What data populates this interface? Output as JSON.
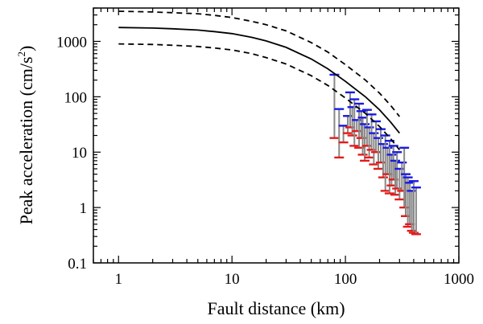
{
  "chart_data": {
    "type": "scatter",
    "title": "",
    "xlabel": "Fault distance (km)",
    "ylabel_main": "Peak acceleration (cm/s",
    "ylabel_sup": "2",
    "ylabel_close": ")",
    "xscale": "log",
    "yscale": "log",
    "xlim": [
      0.6,
      1000
    ],
    "ylim": [
      0.1,
      4000
    ],
    "grid": false,
    "x_ticks": [
      1,
      10,
      100,
      1000
    ],
    "x_tick_labels": [
      "1",
      "10",
      "100",
      "1000"
    ],
    "y_ticks": [
      0.1,
      1,
      10,
      100,
      1000
    ],
    "y_tick_labels": [
      "0.1",
      "1",
      "10",
      "100",
      "1000"
    ],
    "colors": {
      "median": "#000000",
      "bounds": "#000000",
      "range_bar": "#888888",
      "upper_marker": "#1a1ae6",
      "lower_marker": "#e61a1a"
    },
    "median_curve": {
      "x": [
        1,
        2,
        3,
        5,
        7,
        10,
        15,
        20,
        30,
        50,
        70,
        100,
        150,
        200,
        250,
        300
      ],
      "y": [
        1780,
        1740,
        1690,
        1600,
        1500,
        1380,
        1180,
        1020,
        780,
        480,
        320,
        190,
        100,
        58,
        35,
        22
      ]
    },
    "upper_bound": {
      "x": [
        1,
        2,
        3,
        5,
        7,
        10,
        15,
        20,
        30,
        50,
        70,
        100,
        150,
        200,
        250,
        300
      ],
      "y": [
        3500,
        3400,
        3300,
        3150,
        2950,
        2700,
        2300,
        2000,
        1550,
        950,
        640,
        380,
        200,
        116,
        70,
        44
      ]
    },
    "lower_bound": {
      "x": [
        1,
        2,
        3,
        5,
        7,
        10,
        15,
        20,
        30,
        50,
        70,
        100,
        150,
        200,
        250,
        300
      ],
      "y": [
        900,
        880,
        850,
        810,
        760,
        700,
        600,
        510,
        390,
        240,
        160,
        95,
        50,
        29,
        17.5,
        11
      ]
    },
    "records": [
      {
        "x": 80,
        "upper": 250,
        "lower": 18
      },
      {
        "x": 88,
        "upper": 60,
        "lower": 8
      },
      {
        "x": 96,
        "upper": 30,
        "lower": 15
      },
      {
        "x": 105,
        "upper": 45,
        "lower": 22
      },
      {
        "x": 110,
        "upper": 120,
        "lower": 28
      },
      {
        "x": 115,
        "upper": 65,
        "lower": 20
      },
      {
        "x": 120,
        "upper": 90,
        "lower": 13
      },
      {
        "x": 126,
        "upper": 38,
        "lower": 24
      },
      {
        "x": 132,
        "upper": 75,
        "lower": 12
      },
      {
        "x": 138,
        "upper": 55,
        "lower": 18
      },
      {
        "x": 142,
        "upper": 42,
        "lower": 9
      },
      {
        "x": 148,
        "upper": 32,
        "lower": 7
      },
      {
        "x": 155,
        "upper": 58,
        "lower": 13
      },
      {
        "x": 162,
        "upper": 28,
        "lower": 8
      },
      {
        "x": 170,
        "upper": 48,
        "lower": 11
      },
      {
        "x": 178,
        "upper": 22,
        "lower": 6
      },
      {
        "x": 186,
        "upper": 36,
        "lower": 10
      },
      {
        "x": 195,
        "upper": 18,
        "lower": 5
      },
      {
        "x": 205,
        "upper": 26,
        "lower": 6.5
      },
      {
        "x": 215,
        "upper": 14,
        "lower": 3.5
      },
      {
        "x": 225,
        "upper": 20,
        "lower": 2
      },
      {
        "x": 235,
        "upper": 12,
        "lower": 4
      },
      {
        "x": 245,
        "upper": 16,
        "lower": 1.8
      },
      {
        "x": 255,
        "upper": 9,
        "lower": 2.5
      },
      {
        "x": 265,
        "upper": 13,
        "lower": 3.2
      },
      {
        "x": 275,
        "upper": 7,
        "lower": 1.7
      },
      {
        "x": 285,
        "upper": 10,
        "lower": 2.2
      },
      {
        "x": 300,
        "upper": 5,
        "lower": 1.4
      },
      {
        "x": 315,
        "upper": 6.5,
        "lower": 2
      },
      {
        "x": 330,
        "upper": 12,
        "lower": 1
      },
      {
        "x": 340,
        "upper": 4,
        "lower": 0.7
      },
      {
        "x": 355,
        "upper": 3.5,
        "lower": 0.45
      },
      {
        "x": 370,
        "upper": 2.8,
        "lower": 0.5
      },
      {
        "x": 385,
        "upper": 2,
        "lower": 0.38
      },
      {
        "x": 400,
        "upper": 3,
        "lower": 0.35
      },
      {
        "x": 420,
        "upper": 2.3,
        "lower": 0.33
      }
    ]
  }
}
